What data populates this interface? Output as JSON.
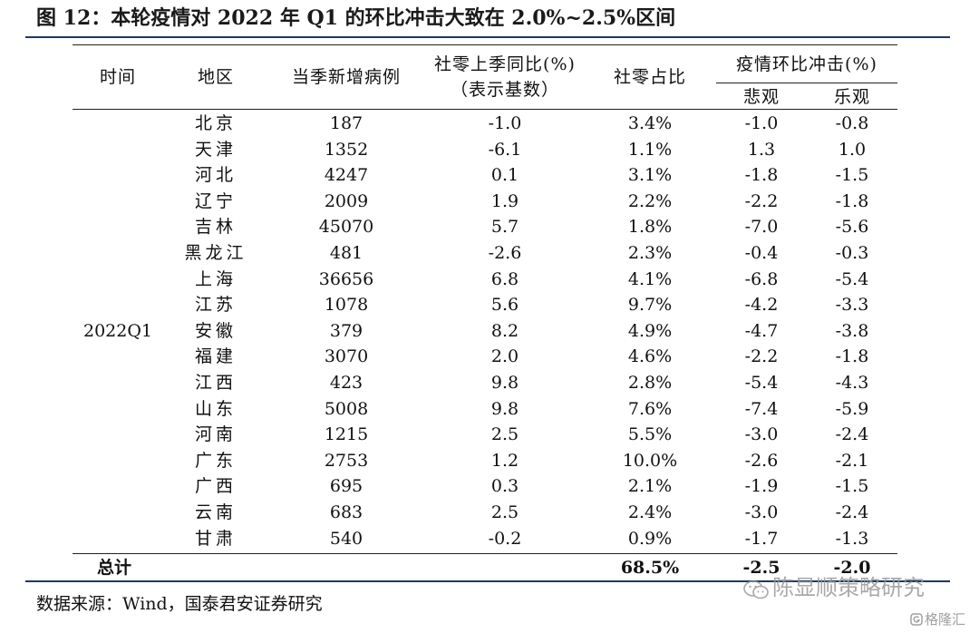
{
  "title": "图 12：本轮疫情对 2022 年 Q1 的环比冲击大致在 2.0%~2.5%区间",
  "header": {
    "time": "时间",
    "region": "地区",
    "cases": "当季新增病例",
    "retail_yoy_line1": "社零上季同比(%)",
    "retail_yoy_line2": "（表示基数）",
    "retail_share": "社零占比",
    "impact": "疫情环比冲击(%)",
    "pessimistic": "悲观",
    "optimistic": "乐观"
  },
  "time_value": "2022Q1",
  "rows": [
    {
      "region": "北京",
      "cases": "187",
      "yoy": "-1.0",
      "share": "3.4%",
      "pess": "-1.0",
      "opt": "-0.8"
    },
    {
      "region": "天津",
      "cases": "1352",
      "yoy": "-6.1",
      "share": "1.1%",
      "pess": "1.3",
      "opt": "1.0"
    },
    {
      "region": "河北",
      "cases": "4247",
      "yoy": "0.1",
      "share": "3.1%",
      "pess": "-1.8",
      "opt": "-1.5"
    },
    {
      "region": "辽宁",
      "cases": "2009",
      "yoy": "1.9",
      "share": "2.2%",
      "pess": "-2.2",
      "opt": "-1.8"
    },
    {
      "region": "吉林",
      "cases": "45070",
      "yoy": "5.7",
      "share": "1.8%",
      "pess": "-7.0",
      "opt": "-5.6"
    },
    {
      "region": "黑龙江",
      "cases": "481",
      "yoy": "-2.6",
      "share": "2.3%",
      "pess": "-0.4",
      "opt": "-0.3"
    },
    {
      "region": "上海",
      "cases": "36656",
      "yoy": "6.8",
      "share": "4.1%",
      "pess": "-6.8",
      "opt": "-5.4"
    },
    {
      "region": "江苏",
      "cases": "1078",
      "yoy": "5.6",
      "share": "9.7%",
      "pess": "-4.2",
      "opt": "-3.3"
    },
    {
      "region": "安徽",
      "cases": "379",
      "yoy": "8.2",
      "share": "4.9%",
      "pess": "-4.7",
      "opt": "-3.8"
    },
    {
      "region": "福建",
      "cases": "3070",
      "yoy": "2.0",
      "share": "4.6%",
      "pess": "-2.2",
      "opt": "-1.8"
    },
    {
      "region": "江西",
      "cases": "423",
      "yoy": "9.8",
      "share": "2.8%",
      "pess": "-5.4",
      "opt": "-4.3"
    },
    {
      "region": "山东",
      "cases": "5008",
      "yoy": "9.8",
      "share": "7.6%",
      "pess": "-7.4",
      "opt": "-5.9"
    },
    {
      "region": "河南",
      "cases": "1215",
      "yoy": "2.5",
      "share": "5.5%",
      "pess": "-3.0",
      "opt": "-2.4"
    },
    {
      "region": "广东",
      "cases": "2753",
      "yoy": "1.2",
      "share": "10.0%",
      "pess": "-2.6",
      "opt": "-2.1"
    },
    {
      "region": "广西",
      "cases": "695",
      "yoy": "0.3",
      "share": "2.1%",
      "pess": "-1.9",
      "opt": "-1.5"
    },
    {
      "region": "云南",
      "cases": "683",
      "yoy": "2.5",
      "share": "2.4%",
      "pess": "-3.0",
      "opt": "-2.4"
    },
    {
      "region": "甘肃",
      "cases": "540",
      "yoy": "-0.2",
      "share": "0.9%",
      "pess": "-1.7",
      "opt": "-1.3"
    }
  ],
  "total": {
    "label": "总计",
    "share": "68.5%",
    "pess": "-2.5",
    "opt": "-2.0"
  },
  "source_note": "数据来源：Wind，国泰君安证券研究",
  "watermark": {
    "wechat": "陈显顺策略研究",
    "site": "格隆汇"
  },
  "colors": {
    "title_rule": "#1f3864",
    "watermark": "#9a9a9a"
  }
}
